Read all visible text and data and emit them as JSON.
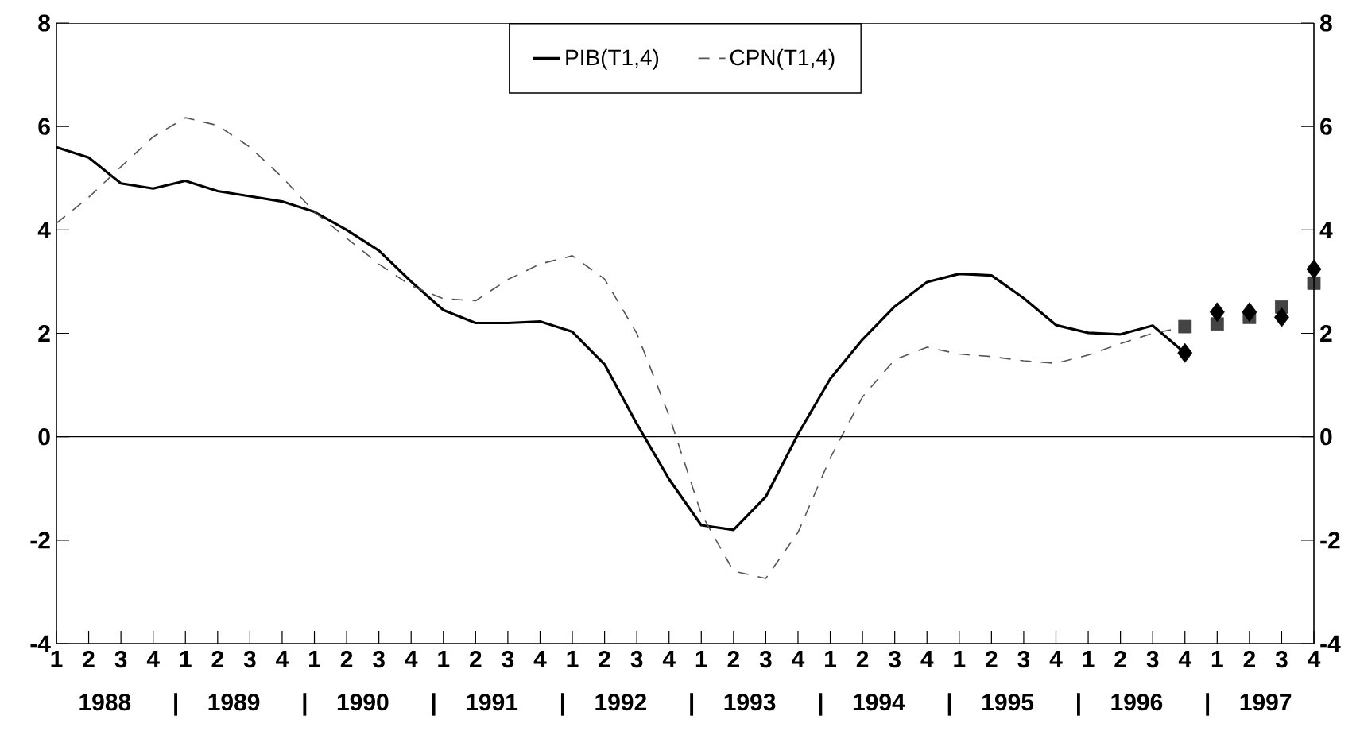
{
  "chart_data": {
    "type": "line",
    "categories": [
      "1",
      "2",
      "3",
      "4",
      "1",
      "2",
      "3",
      "4",
      "1",
      "2",
      "3",
      "4",
      "1",
      "2",
      "3",
      "4",
      "1",
      "2",
      "3",
      "4",
      "1",
      "2",
      "3",
      "4",
      "1",
      "2",
      "3",
      "4",
      "1",
      "2",
      "3",
      "4",
      "1",
      "2",
      "3",
      "4",
      "1",
      "2",
      "3",
      "4"
    ],
    "series": [
      {
        "name": "PIB(T1,4)",
        "color": "#000000",
        "line_style": "solid",
        "marker": "none",
        "values": [
          5.6,
          5.4,
          4.9,
          4.8,
          4.95,
          4.75,
          4.65,
          4.55,
          4.35,
          4.0,
          3.6,
          3.0,
          2.45,
          2.2,
          2.2,
          2.23,
          2.03,
          1.4,
          0.25,
          -0.82,
          -1.71,
          -1.8,
          -1.16,
          0.05,
          1.12,
          1.88,
          2.52,
          2.99,
          3.15,
          3.12,
          2.68,
          2.16,
          2.01,
          1.98,
          2.15,
          1.62,
          null,
          null,
          null,
          null
        ]
      },
      {
        "name": "CPN(T1,4)",
        "color": "#555555",
        "line_style": "dashed",
        "marker": "none",
        "values": [
          4.13,
          4.63,
          5.22,
          5.8,
          6.17,
          6.02,
          5.6,
          5.02,
          4.35,
          3.84,
          3.34,
          2.92,
          2.67,
          2.63,
          3.04,
          3.34,
          3.5,
          3.05,
          2.0,
          0.41,
          -1.49,
          -2.6,
          -2.74,
          -1.85,
          -0.41,
          0.77,
          1.49,
          1.73,
          1.6,
          1.55,
          1.47,
          1.42,
          1.58,
          1.8,
          2.0,
          2.12,
          null,
          null,
          null,
          null
        ]
      },
      {
        "type": "scatter",
        "color": "#444444",
        "marker": "square",
        "values": [
          null,
          null,
          null,
          null,
          null,
          null,
          null,
          null,
          null,
          null,
          null,
          null,
          null,
          null,
          null,
          null,
          null,
          null,
          null,
          null,
          null,
          null,
          null,
          null,
          null,
          null,
          null,
          null,
          null,
          null,
          null,
          null,
          null,
          null,
          null,
          2.13,
          2.18,
          2.31,
          2.51,
          2.97
        ]
      },
      {
        "type": "scatter",
        "color": "#000000",
        "marker": "diamond",
        "values": [
          null,
          null,
          null,
          null,
          null,
          null,
          null,
          null,
          null,
          null,
          null,
          null,
          null,
          null,
          null,
          null,
          null,
          null,
          null,
          null,
          null,
          null,
          null,
          null,
          null,
          null,
          null,
          null,
          null,
          null,
          null,
          null,
          null,
          null,
          null,
          1.62,
          2.41,
          2.41,
          2.31,
          3.24
        ]
      }
    ],
    "ylim": [
      -4,
      8
    ],
    "yticks": [
      -4,
      -2,
      0,
      2,
      4,
      6,
      8
    ],
    "y2lim": [
      -4,
      8
    ],
    "y2ticks": [
      -4,
      -2,
      0,
      2,
      4,
      6,
      8
    ],
    "ref_lines": [
      {
        "axis": "y",
        "value": 0,
        "color": "#000000"
      }
    ],
    "legend": "top",
    "annotations": [
      "1988",
      "|",
      "1989",
      "|",
      "1990",
      "|",
      "1991",
      "|",
      "1992",
      "|",
      "1993",
      "|",
      "1994",
      "|",
      "1995",
      "|",
      "1996",
      "|",
      "1997"
    ]
  }
}
